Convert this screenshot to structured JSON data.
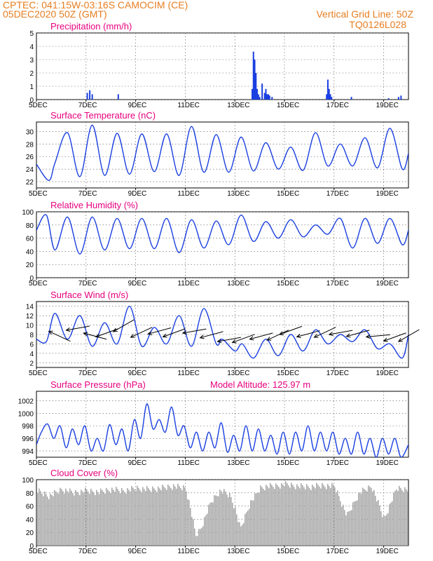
{
  "header": {
    "line1_left": "CPTEC:   041:15W-03:16S   CAMOCIM (CE)",
    "line2_left": "05DEC2020 50Z (GMT)",
    "line1_right": "Vertical Grid Line: 50Z",
    "line2_right": "TQ0126L028"
  },
  "colors": {
    "header": "#e67e22",
    "title": "#e6007e",
    "line": "#1a3fe0",
    "bar": "#1a3fe0",
    "cloud": "#aaaaaa",
    "grid": "#555555"
  },
  "x_ticks": [
    "5DEC",
    "7DEC",
    "9DEC",
    "11DEC",
    "13DEC",
    "15DEC",
    "17DEC",
    "19DEC"
  ],
  "x_range": [
    0,
    15
  ],
  "chart_data": [
    {
      "id": "precip",
      "type": "bar",
      "title": "Precipitation (mm/h)",
      "ylim": [
        0,
        5
      ],
      "yticks": [
        "0",
        "1",
        "2",
        "3",
        "4",
        "5"
      ],
      "x": [
        2.05,
        2.15,
        2.25,
        3.3,
        8.7,
        8.75,
        8.8,
        8.85,
        8.9,
        8.95,
        9.0,
        9.1,
        9.2,
        9.25,
        9.3,
        9.35,
        9.4,
        9.5,
        11.7,
        11.75,
        11.8,
        11.85,
        11.9,
        12.7,
        14.2,
        14.6,
        14.7
      ],
      "values": [
        0.5,
        0.7,
        0.4,
        0.4,
        0.8,
        3.6,
        3.0,
        2.0,
        0.8,
        0.4,
        0.2,
        1.2,
        0.5,
        0.8,
        0.4,
        0.4,
        0.3,
        0.2,
        0.4,
        1.5,
        0.8,
        0.4,
        0.2,
        0.2,
        0.1,
        0.2,
        0.3
      ]
    },
    {
      "id": "temp",
      "type": "line",
      "title": "Surface Temperature (nC)",
      "ylim": [
        21,
        31.5
      ],
      "yticks": [
        "22",
        "24",
        "26",
        "28",
        "30"
      ],
      "x": [
        0,
        0.5,
        0.75,
        1.25,
        1.75,
        2.25,
        2.75,
        3.25,
        3.75,
        4.25,
        4.75,
        5.25,
        5.75,
        6.25,
        6.75,
        7.25,
        7.75,
        8.25,
        8.75,
        9.25,
        9.75,
        10.25,
        10.75,
        11.25,
        11.75,
        12.25,
        12.75,
        13.25,
        13.75,
        14.25,
        14.75,
        15
      ],
      "values": [
        24.8,
        22.2,
        25,
        29.8,
        22.8,
        31,
        23,
        29.7,
        23.2,
        29.6,
        23.6,
        29.6,
        23,
        30.8,
        23.5,
        29.5,
        23.5,
        29.1,
        23.7,
        28.2,
        24,
        27.5,
        23.8,
        29.8,
        24.5,
        28,
        24.5,
        29,
        24.2,
        30.5,
        24,
        26.5
      ]
    },
    {
      "id": "rh",
      "type": "line",
      "title": "Relative Humidity (%)",
      "ylim": [
        0,
        100
      ],
      "yticks": [
        "0",
        "20",
        "40",
        "60",
        "80",
        "100"
      ],
      "x": [
        0,
        0.4,
        0.75,
        1.25,
        1.75,
        2.25,
        2.75,
        3.25,
        3.75,
        4.25,
        4.75,
        5.25,
        5.75,
        6.25,
        6.75,
        7.25,
        7.75,
        8.25,
        8.75,
        9.25,
        9.75,
        10.25,
        10.75,
        11.25,
        11.75,
        12.25,
        12.75,
        13.25,
        13.75,
        14.25,
        14.75,
        15
      ],
      "values": [
        72,
        95,
        42,
        92,
        36,
        92,
        42,
        90,
        44,
        90,
        44,
        90,
        38,
        88,
        45,
        86,
        50,
        95,
        55,
        85,
        60,
        88,
        62,
        80,
        66,
        90,
        45,
        90,
        52,
        90,
        50,
        72
      ]
    },
    {
      "id": "wind",
      "type": "line",
      "title": "Surface Wind (m/s)",
      "ylim": [
        1,
        15
      ],
      "yticks": [
        "2",
        "4",
        "6",
        "8",
        "10",
        "12",
        "14"
      ],
      "x": [
        0,
        0.4,
        0.75,
        1.25,
        1.75,
        2.25,
        2.75,
        3.25,
        3.75,
        4.25,
        4.75,
        5.25,
        5.75,
        6.25,
        6.75,
        7.25,
        7.5,
        8.0,
        8.3,
        8.75,
        9.25,
        9.75,
        10.25,
        10.75,
        11.25,
        11.75,
        12.25,
        12.75,
        13.25,
        13.75,
        14.25,
        14.75,
        15
      ],
      "values": [
        7,
        6.5,
        12.5,
        7,
        12,
        5.5,
        10.5,
        6,
        14,
        5.5,
        9.5,
        6,
        12,
        5.5,
        13.5,
        6,
        7,
        4.5,
        6,
        3,
        7,
        3.5,
        8,
        4.5,
        9,
        6,
        8,
        6.5,
        9,
        5,
        6,
        3,
        8
      ],
      "arrows": [
        {
          "x": 0.5,
          "y": 8.7,
          "angle": 25
        },
        {
          "x": 1.2,
          "y": 8.9,
          "angle": -10
        },
        {
          "x": 1.9,
          "y": 8.3,
          "angle": 15
        },
        {
          "x": 2.4,
          "y": 7.5,
          "angle": -20
        },
        {
          "x": 3.1,
          "y": 8.6,
          "angle": -30
        },
        {
          "x": 3.8,
          "y": 7.4,
          "angle": -25
        },
        {
          "x": 4.5,
          "y": 8.1,
          "angle": -15
        },
        {
          "x": 5.1,
          "y": 7.5,
          "angle": -20
        },
        {
          "x": 5.9,
          "y": 8.3,
          "angle": -10
        },
        {
          "x": 6.6,
          "y": 7.3,
          "angle": -15
        },
        {
          "x": 7.3,
          "y": 6.5,
          "angle": -10
        },
        {
          "x": 7.9,
          "y": 6.3,
          "angle": -20
        },
        {
          "x": 8.6,
          "y": 7.0,
          "angle": -15
        },
        {
          "x": 9.3,
          "y": 6.8,
          "angle": -25
        },
        {
          "x": 9.8,
          "y": 8.0,
          "angle": -20
        },
        {
          "x": 10.5,
          "y": 7.5,
          "angle": -15
        },
        {
          "x": 11.2,
          "y": 7.4,
          "angle": -25
        },
        {
          "x": 11.8,
          "y": 8.0,
          "angle": -10
        },
        {
          "x": 12.5,
          "y": 7.6,
          "angle": -15
        },
        {
          "x": 13.3,
          "y": 7.5,
          "angle": -5
        },
        {
          "x": 14.0,
          "y": 6.6,
          "angle": -20
        },
        {
          "x": 14.6,
          "y": 6.5,
          "angle": -30
        }
      ]
    },
    {
      "id": "press",
      "type": "line",
      "title": "Surface Pressure (hPa)",
      "annotation": "Model Altitude: 125.97 m",
      "ylim": [
        993,
        1003.5
      ],
      "yticks": [
        "994",
        "996",
        "998",
        "1000",
        "1002"
      ],
      "x": [
        0,
        0.2,
        0.45,
        0.7,
        0.95,
        1.2,
        1.45,
        1.7,
        1.95,
        2.2,
        2.45,
        2.7,
        2.95,
        3.2,
        3.45,
        3.7,
        3.95,
        4.2,
        4.45,
        4.7,
        4.95,
        5.2,
        5.45,
        5.7,
        5.95,
        6.2,
        6.45,
        6.7,
        6.95,
        7.2,
        7.45,
        7.7,
        7.95,
        8.2,
        8.45,
        8.7,
        8.95,
        9.2,
        9.45,
        9.7,
        9.95,
        10.2,
        10.45,
        10.7,
        10.95,
        11.2,
        11.45,
        11.7,
        11.95,
        12.2,
        12.45,
        12.7,
        12.95,
        13.2,
        13.45,
        13.7,
        13.95,
        14.2,
        14.45,
        14.7,
        15
      ],
      "values": [
        995,
        997,
        998.3,
        996,
        998,
        994.5,
        997.5,
        995,
        998,
        994,
        996,
        994,
        998.2,
        995,
        997.5,
        994,
        999,
        996,
        1001.5,
        997.5,
        999,
        997,
        1001,
        996.5,
        998,
        994.5,
        997,
        994,
        997,
        994.5,
        998.5,
        993.8,
        996.5,
        994,
        998,
        994,
        997.5,
        994,
        996.5,
        993.5,
        997,
        993.5,
        997,
        994,
        998,
        994,
        997,
        994,
        997,
        993.5,
        996,
        993.5,
        997,
        993.5,
        996,
        993,
        996,
        993.5,
        996,
        993,
        995
      ]
    },
    {
      "id": "cloud",
      "type": "area",
      "title": "Cloud Cover (%)",
      "ylim": [
        0,
        100
      ],
      "yticks": [
        "0",
        "20",
        "40",
        "60",
        "80",
        "100"
      ],
      "x": [
        0,
        0.5,
        1,
        1.5,
        2,
        2.5,
        3,
        3.5,
        4,
        4.5,
        5,
        5.5,
        6,
        6.2,
        6.4,
        6.6,
        6.8,
        7,
        7.2,
        7.4,
        7.6,
        7.8,
        8,
        8.2,
        8.4,
        8.6,
        8.8,
        9,
        9.3,
        9.6,
        10,
        10.5,
        11,
        11.5,
        12,
        12.5,
        13,
        13.5,
        14,
        14.5,
        15
      ],
      "values": [
        88,
        80,
        90,
        85,
        88,
        86,
        90,
        88,
        92,
        90,
        92,
        95,
        92,
        60,
        20,
        30,
        50,
        70,
        80,
        88,
        85,
        80,
        60,
        30,
        50,
        70,
        80,
        92,
        95,
        95,
        98,
        95,
        94,
        96,
        95,
        50,
        85,
        95,
        45,
        92,
        90
      ]
    }
  ]
}
